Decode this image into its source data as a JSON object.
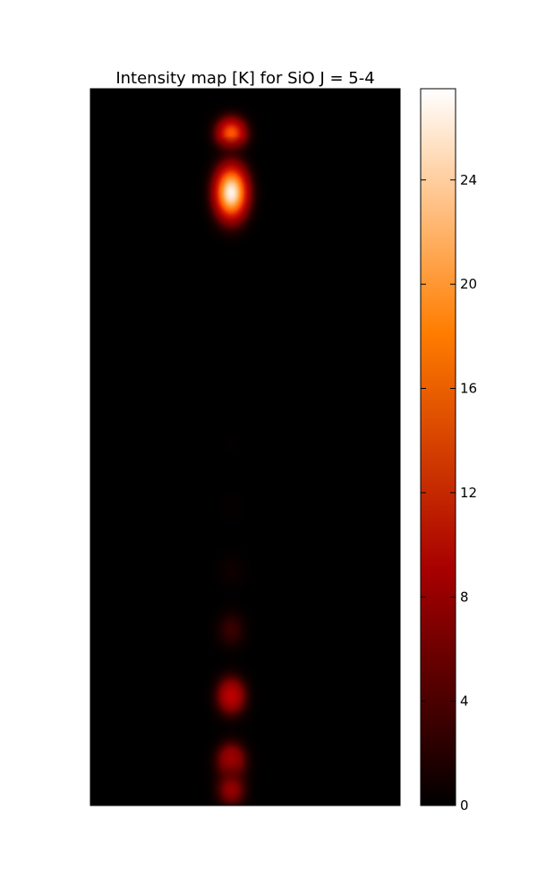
{
  "chart_data": {
    "type": "heatmap",
    "title": "Intensity map [K] for SiO J = 5-4",
    "xlabel": "",
    "ylabel": "",
    "colormap": "gist_heat",
    "colorbar": {
      "vmin": 0,
      "vmax": 27.5,
      "ticks": [
        0,
        4,
        8,
        12,
        16,
        20,
        24
      ],
      "tick_labels": [
        "0",
        "4",
        "8",
        "12",
        "16",
        "20",
        "24"
      ]
    },
    "xlim": [
      0,
      1
    ],
    "ylim": [
      0,
      1
    ],
    "grid": false,
    "axis_ticks": false,
    "sources": [
      {
        "x": 0.455,
        "y": 0.938,
        "peak": 18.5,
        "sigma_x": 0.04,
        "sigma_y": 0.018
      },
      {
        "x": 0.455,
        "y": 0.855,
        "peak": 27.0,
        "sigma_x": 0.043,
        "sigma_y": 0.03
      },
      {
        "x": 0.455,
        "y": 0.6,
        "peak": 0.6,
        "sigma_x": 0.04,
        "sigma_y": 0.022
      },
      {
        "x": 0.455,
        "y": 0.505,
        "peak": 1.0,
        "sigma_x": 0.04,
        "sigma_y": 0.022
      },
      {
        "x": 0.455,
        "y": 0.415,
        "peak": 1.6,
        "sigma_x": 0.04,
        "sigma_y": 0.022
      },
      {
        "x": 0.455,
        "y": 0.328,
        "peak": 3.0,
        "sigma_x": 0.04,
        "sigma_y": 0.022
      },
      {
        "x": 0.455,
        "y": 0.245,
        "peak": 6.0,
        "sigma_x": 0.04,
        "sigma_y": 0.022
      },
      {
        "x": 0.455,
        "y": 0.153,
        "peak": 13.5,
        "sigma_x": 0.04,
        "sigma_y": 0.022
      },
      {
        "x": 0.455,
        "y": 0.061,
        "peak": 13.0,
        "sigma_x": 0.04,
        "sigma_y": 0.022
      },
      {
        "x": 0.455,
        "y": 0.022,
        "peak": 10.5,
        "sigma_x": 0.04,
        "sigma_y": 0.02
      }
    ]
  }
}
